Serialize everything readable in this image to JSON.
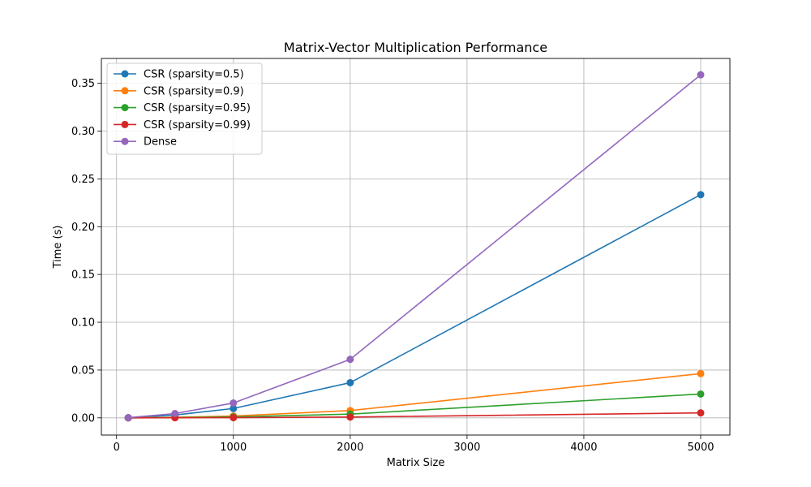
{
  "chart_data": {
    "type": "line",
    "title": "Matrix-Vector Multiplication Performance",
    "xlabel": "Matrix Size",
    "ylabel": "Time (s)",
    "xlim": [
      -130,
      5250
    ],
    "ylim": [
      -0.018,
      0.376
    ],
    "xticks": [
      0,
      1000,
      2000,
      3000,
      4000,
      5000
    ],
    "xtick_labels": [
      "0",
      "1000",
      "2000",
      "3000",
      "4000",
      "5000"
    ],
    "yticks": [
      0.0,
      0.05,
      0.1,
      0.15,
      0.2,
      0.25,
      0.3,
      0.35
    ],
    "ytick_labels": [
      "0.00",
      "0.05",
      "0.10",
      "0.15",
      "0.20",
      "0.25",
      "0.30",
      "0.35"
    ],
    "grid": true,
    "legend_position": "top-left",
    "x": [
      100,
      500,
      1000,
      2000,
      5000
    ],
    "series": [
      {
        "name": "CSR (sparsity=0.5)",
        "color": "#1f77b4",
        "values": [
          0.0001,
          0.003,
          0.0098,
          0.0368,
          0.2335
        ]
      },
      {
        "name": "CSR (sparsity=0.9)",
        "color": "#ff7f0e",
        "values": [
          0.0,
          0.0006,
          0.0019,
          0.0076,
          0.0463
        ]
      },
      {
        "name": "CSR (sparsity=0.95)",
        "color": "#2ca02c",
        "values": [
          0.0,
          0.0003,
          0.001,
          0.0039,
          0.0249
        ]
      },
      {
        "name": "CSR (sparsity=0.99)",
        "color": "#d62728",
        "values": [
          0.0,
          0.0001,
          0.0002,
          0.0008,
          0.0052
        ]
      },
      {
        "name": "Dense",
        "color": "#9467bd",
        "values": [
          0.0002,
          0.0045,
          0.0155,
          0.0612,
          0.3589
        ]
      }
    ]
  }
}
